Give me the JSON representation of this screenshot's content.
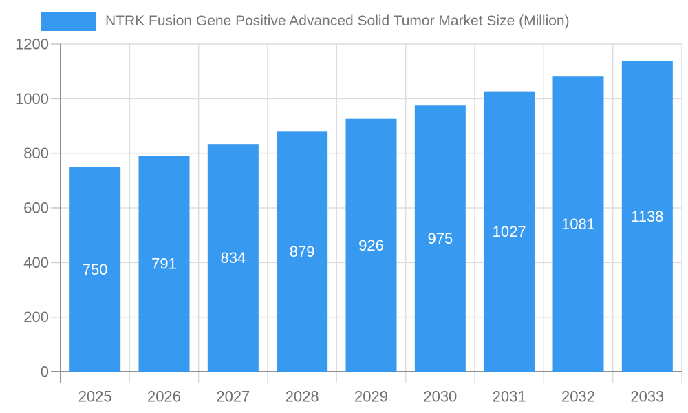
{
  "legend": {
    "label": "NTRK Fusion Gene Positive Advanced Solid Tumor Market Size (Million)"
  },
  "chart_data": {
    "type": "bar",
    "title": "NTRK Fusion Gene Positive Advanced Solid Tumor Market Size (Million)",
    "categories": [
      "2025",
      "2026",
      "2027",
      "2028",
      "2029",
      "2030",
      "2031",
      "2032",
      "2033"
    ],
    "values": [
      750,
      791,
      834,
      879,
      926,
      975,
      1027,
      1081,
      1138
    ],
    "series": [
      {
        "name": "NTRK Fusion Gene Positive Advanced Solid Tumor Market Size (Million)",
        "values": [
          750,
          791,
          834,
          879,
          926,
          975,
          1027,
          1081,
          1138
        ]
      }
    ],
    "xlabel": "",
    "ylabel": "",
    "ylim": [
      0,
      1200
    ],
    "ytick_step": 200,
    "ytick_labels": [
      "0",
      "200",
      "400",
      "600",
      "800",
      "1000",
      "1200"
    ],
    "grid": "horizontal and vertical light gray gridlines, drawn behind bars",
    "legend_position": "top-left",
    "value_labels": "white, centered inside each bar",
    "colors": {
      "bar": "#3899F0",
      "grid": "#dddddd",
      "tick": "#c9c9c9",
      "axis": "#909090",
      "axis_label": "#6f6f6f",
      "title": "#757575",
      "bar_label": "#ffffff",
      "background": "#ffffff"
    }
  }
}
